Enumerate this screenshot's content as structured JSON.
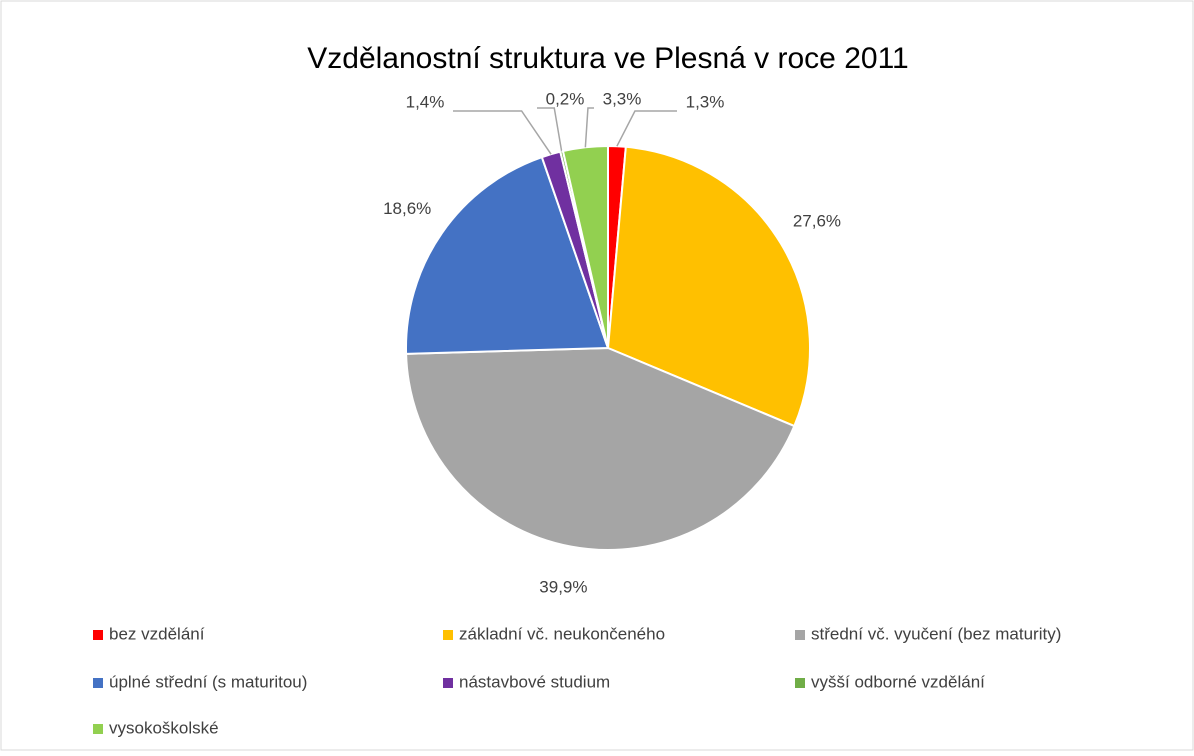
{
  "chart_data": {
    "type": "pie",
    "title": "Vzdělanostní struktura ve Plesná v roce 2011",
    "categories": [
      "bez vzdělání",
      "základní vč. neukončeného",
      "střední vč. vyučení (bez maturity)",
      "úplné střední (s maturitou)",
      "nástavbové studium",
      "vyšší odborné vzdělání",
      "vysokoškolské"
    ],
    "values": [
      1.3,
      27.6,
      39.9,
      18.6,
      1.4,
      0.2,
      3.3
    ],
    "value_labels": [
      "1,3%",
      "27,6%",
      "39,9%",
      "18,6%",
      "1,4%",
      "0,2%",
      "3,3%"
    ],
    "colors": [
      "#ff0000",
      "#ffc000",
      "#a5a5a5",
      "#4472c4",
      "#7030a0",
      "#70ad47",
      "#92d050"
    ],
    "legend": "bottom"
  }
}
